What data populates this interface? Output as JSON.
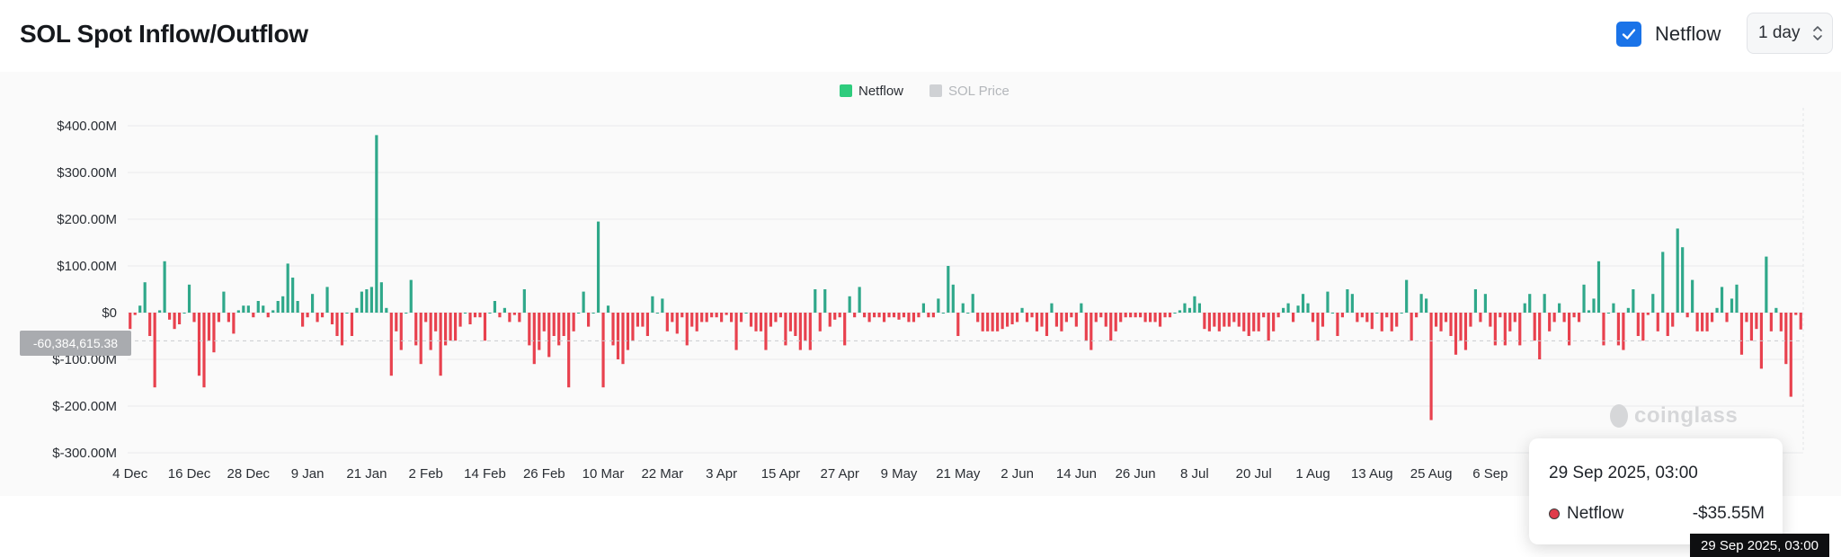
{
  "header": {
    "title": "SOL Spot Inflow/Outflow",
    "netflow_toggle_label": "Netflow",
    "interval_label": "1 day"
  },
  "colors": {
    "positive": "#2fa88a",
    "negative": "#e8414e",
    "legend_netflow": "#2ecc7d",
    "legend_price": "#cfd1d4"
  },
  "chart_data": {
    "type": "bar",
    "legend": [
      {
        "name": "Netflow",
        "active": true
      },
      {
        "name": "SOL Price",
        "active": false
      }
    ],
    "legend_placement": "top-center",
    "y_ticks": [
      "$400.00M",
      "$300.00M",
      "$200.00M",
      "$100.00M",
      "$0",
      "$-100.00M",
      "$-200.00M",
      "$-300.00M"
    ],
    "y_tick_values": [
      400,
      300,
      200,
      100,
      0,
      -100,
      -200,
      -300
    ],
    "ylim": [
      -300,
      400
    ],
    "x_ticks": [
      "4 Dec",
      "16 Dec",
      "28 Dec",
      "9 Jan",
      "21 Jan",
      "2 Feb",
      "14 Feb",
      "26 Feb",
      "10 Mar",
      "22 Mar",
      "3 Apr",
      "15 Apr",
      "27 Apr",
      "9 May",
      "21 May",
      "2 Jun",
      "14 Jun",
      "26 Jun",
      "8 Jul",
      "20 Jul",
      "1 Aug",
      "13 Aug",
      "25 Aug",
      "6 Sep"
    ],
    "x_start": "4 Dec",
    "x_end": "29 Sep",
    "units": "USD millions",
    "grid": true,
    "values": [
      -35,
      -5,
      15,
      65,
      -50,
      -160,
      5,
      110,
      -15,
      -35,
      -25,
      0,
      60,
      -20,
      -135,
      -160,
      -60,
      -85,
      -20,
      45,
      -20,
      -45,
      5,
      15,
      15,
      -10,
      25,
      15,
      -10,
      5,
      25,
      35,
      105,
      75,
      25,
      -30,
      -10,
      40,
      -20,
      -10,
      55,
      -25,
      -50,
      -70,
      0,
      -50,
      10,
      45,
      50,
      55,
      380,
      65,
      10,
      -135,
      -40,
      -80,
      0,
      70,
      -70,
      -110,
      -20,
      -80,
      -40,
      -135,
      -70,
      -60,
      -60,
      -30,
      0,
      -25,
      -10,
      -10,
      -60,
      0,
      25,
      -10,
      10,
      -20,
      -5,
      -20,
      50,
      -70,
      -110,
      -80,
      -40,
      -95,
      -50,
      -70,
      -50,
      -160,
      -40,
      0,
      45,
      -30,
      0,
      195,
      -160,
      15,
      -70,
      -100,
      -110,
      -80,
      -60,
      -30,
      -30,
      -50,
      35,
      0,
      30,
      -40,
      -20,
      -45,
      -10,
      -70,
      -30,
      -40,
      -20,
      -20,
      -10,
      -10,
      -20,
      -5,
      -20,
      -80,
      -20,
      0,
      -30,
      -40,
      -40,
      -80,
      -30,
      -20,
      -10,
      -70,
      -40,
      -50,
      -80,
      -60,
      -80,
      50,
      -40,
      50,
      -30,
      -15,
      -10,
      -70,
      35,
      -10,
      55,
      -10,
      -20,
      -10,
      -10,
      -20,
      -10,
      -10,
      -15,
      -10,
      -20,
      -20,
      -10,
      20,
      -10,
      -10,
      30,
      0,
      100,
      60,
      -50,
      20,
      0,
      40,
      -20,
      -40,
      -40,
      -40,
      -40,
      -35,
      -30,
      -25,
      -20,
      10,
      -20,
      -10,
      -40,
      -30,
      -50,
      20,
      -30,
      -40,
      -20,
      -10,
      -30,
      20,
      -60,
      -80,
      -20,
      -10,
      -30,
      -60,
      -40,
      -20,
      -10,
      -10,
      -10,
      -10,
      -20,
      -20,
      -20,
      -30,
      -10,
      -10,
      0,
      5,
      20,
      10,
      35,
      20,
      -35,
      -40,
      -30,
      -40,
      -30,
      -30,
      -20,
      -30,
      -40,
      -50,
      -40,
      -40,
      -10,
      -60,
      -40,
      -10,
      10,
      20,
      -20,
      15,
      40,
      20,
      -20,
      -60,
      -30,
      45,
      0,
      -50,
      -10,
      50,
      40,
      -20,
      -10,
      -20,
      -35,
      0,
      -40,
      -10,
      -40,
      -30,
      0,
      70,
      -60,
      -10,
      40,
      30,
      -230,
      -30,
      -40,
      -20,
      -50,
      -90,
      -60,
      -80,
      -30,
      50,
      -20,
      40,
      -30,
      -70,
      -10,
      -70,
      -40,
      -20,
      -70,
      20,
      40,
      -60,
      -100,
      40,
      -40,
      -20,
      20,
      -20,
      -70,
      -10,
      -20,
      60,
      5,
      30,
      110,
      -70,
      0,
      20,
      -70,
      -80,
      10,
      50,
      -50,
      -60,
      -5,
      40,
      -40,
      130,
      -50,
      -30,
      180,
      140,
      -10,
      70,
      -40,
      -40,
      -40,
      -20,
      10,
      55,
      -20,
      30,
      60,
      -90,
      -20,
      -60,
      -35,
      -120,
      120,
      -40,
      10,
      -40,
      -110,
      -180,
      -5,
      -36
    ]
  },
  "cursor": {
    "value_label": "-60,384,615.38",
    "date_label": "29 Sep 2025, 03:00"
  },
  "tooltip": {
    "date": "29 Sep 2025, 03:00",
    "series": "Netflow",
    "value": "-$35.55M"
  },
  "watermark": "coinglass"
}
